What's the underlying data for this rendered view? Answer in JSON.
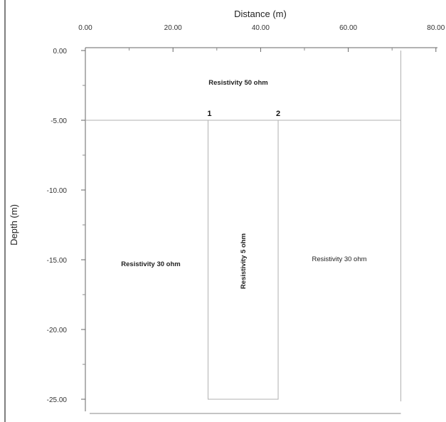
{
  "axes": {
    "x_title": "Distance (m)",
    "y_title": "Depth (m)",
    "x_ticks": [
      {
        "value": 0,
        "label": "0.00"
      },
      {
        "value": 20,
        "label": "20.00"
      },
      {
        "value": 40,
        "label": "40.00"
      },
      {
        "value": 60,
        "label": "60.00"
      },
      {
        "value": 80,
        "label": "80.00"
      }
    ],
    "y_ticks": [
      {
        "value": 0,
        "label": "0.00"
      },
      {
        "value": -5,
        "label": "-5.00"
      },
      {
        "value": -10,
        "label": "-10.00"
      },
      {
        "value": -15,
        "label": "-15.00"
      },
      {
        "value": -20,
        "label": "-20.00"
      },
      {
        "value": -25,
        "label": "-25.00"
      }
    ],
    "x_range": [
      0,
      80
    ],
    "y_range": [
      -25,
      0
    ]
  },
  "model": {
    "domain": {
      "x_min": 0,
      "x_max": 72,
      "y_min": -25,
      "y_max": 0
    },
    "layer_boundary_depth": -5,
    "body": {
      "x_min": 28,
      "x_max": 44,
      "y_min": -25,
      "y_max": -5
    },
    "markers": [
      {
        "label": "1",
        "x": 28
      },
      {
        "label": "2",
        "x": 44
      }
    ]
  },
  "regions": {
    "top": "Resistivity 50 ohm",
    "left": "Resistivity 30 ohm",
    "body": "Resistivity 5 ohm",
    "right": "Resistivity 30 ohm"
  },
  "colors": {
    "axis": "#666666",
    "boundary": "#b0b0b0",
    "frame": "#888888"
  }
}
